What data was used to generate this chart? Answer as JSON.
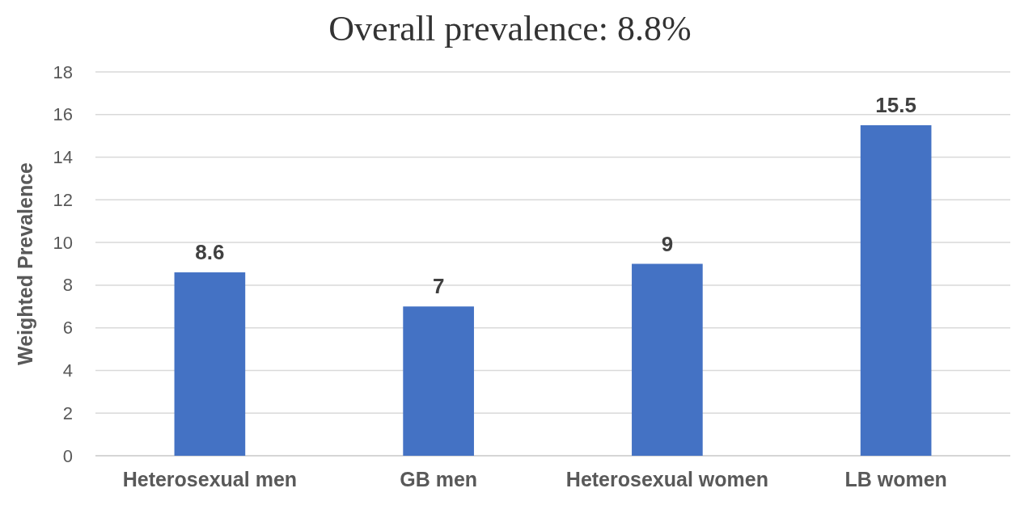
{
  "chart_data": {
    "type": "bar",
    "title": "Overall prevalence: 8.8%",
    "ylabel": "Weighted Prevalence",
    "categories": [
      "Heterosexual men",
      "GB men",
      "Heterosexual women",
      "LB women"
    ],
    "values": [
      8.6,
      7,
      9,
      15.5
    ],
    "color": "#4472c4",
    "ylim": [
      0,
      18
    ],
    "yticks": [
      0,
      2,
      4,
      6,
      8,
      10,
      12,
      14,
      16,
      18
    ],
    "grid": "y",
    "data_labels": true
  }
}
